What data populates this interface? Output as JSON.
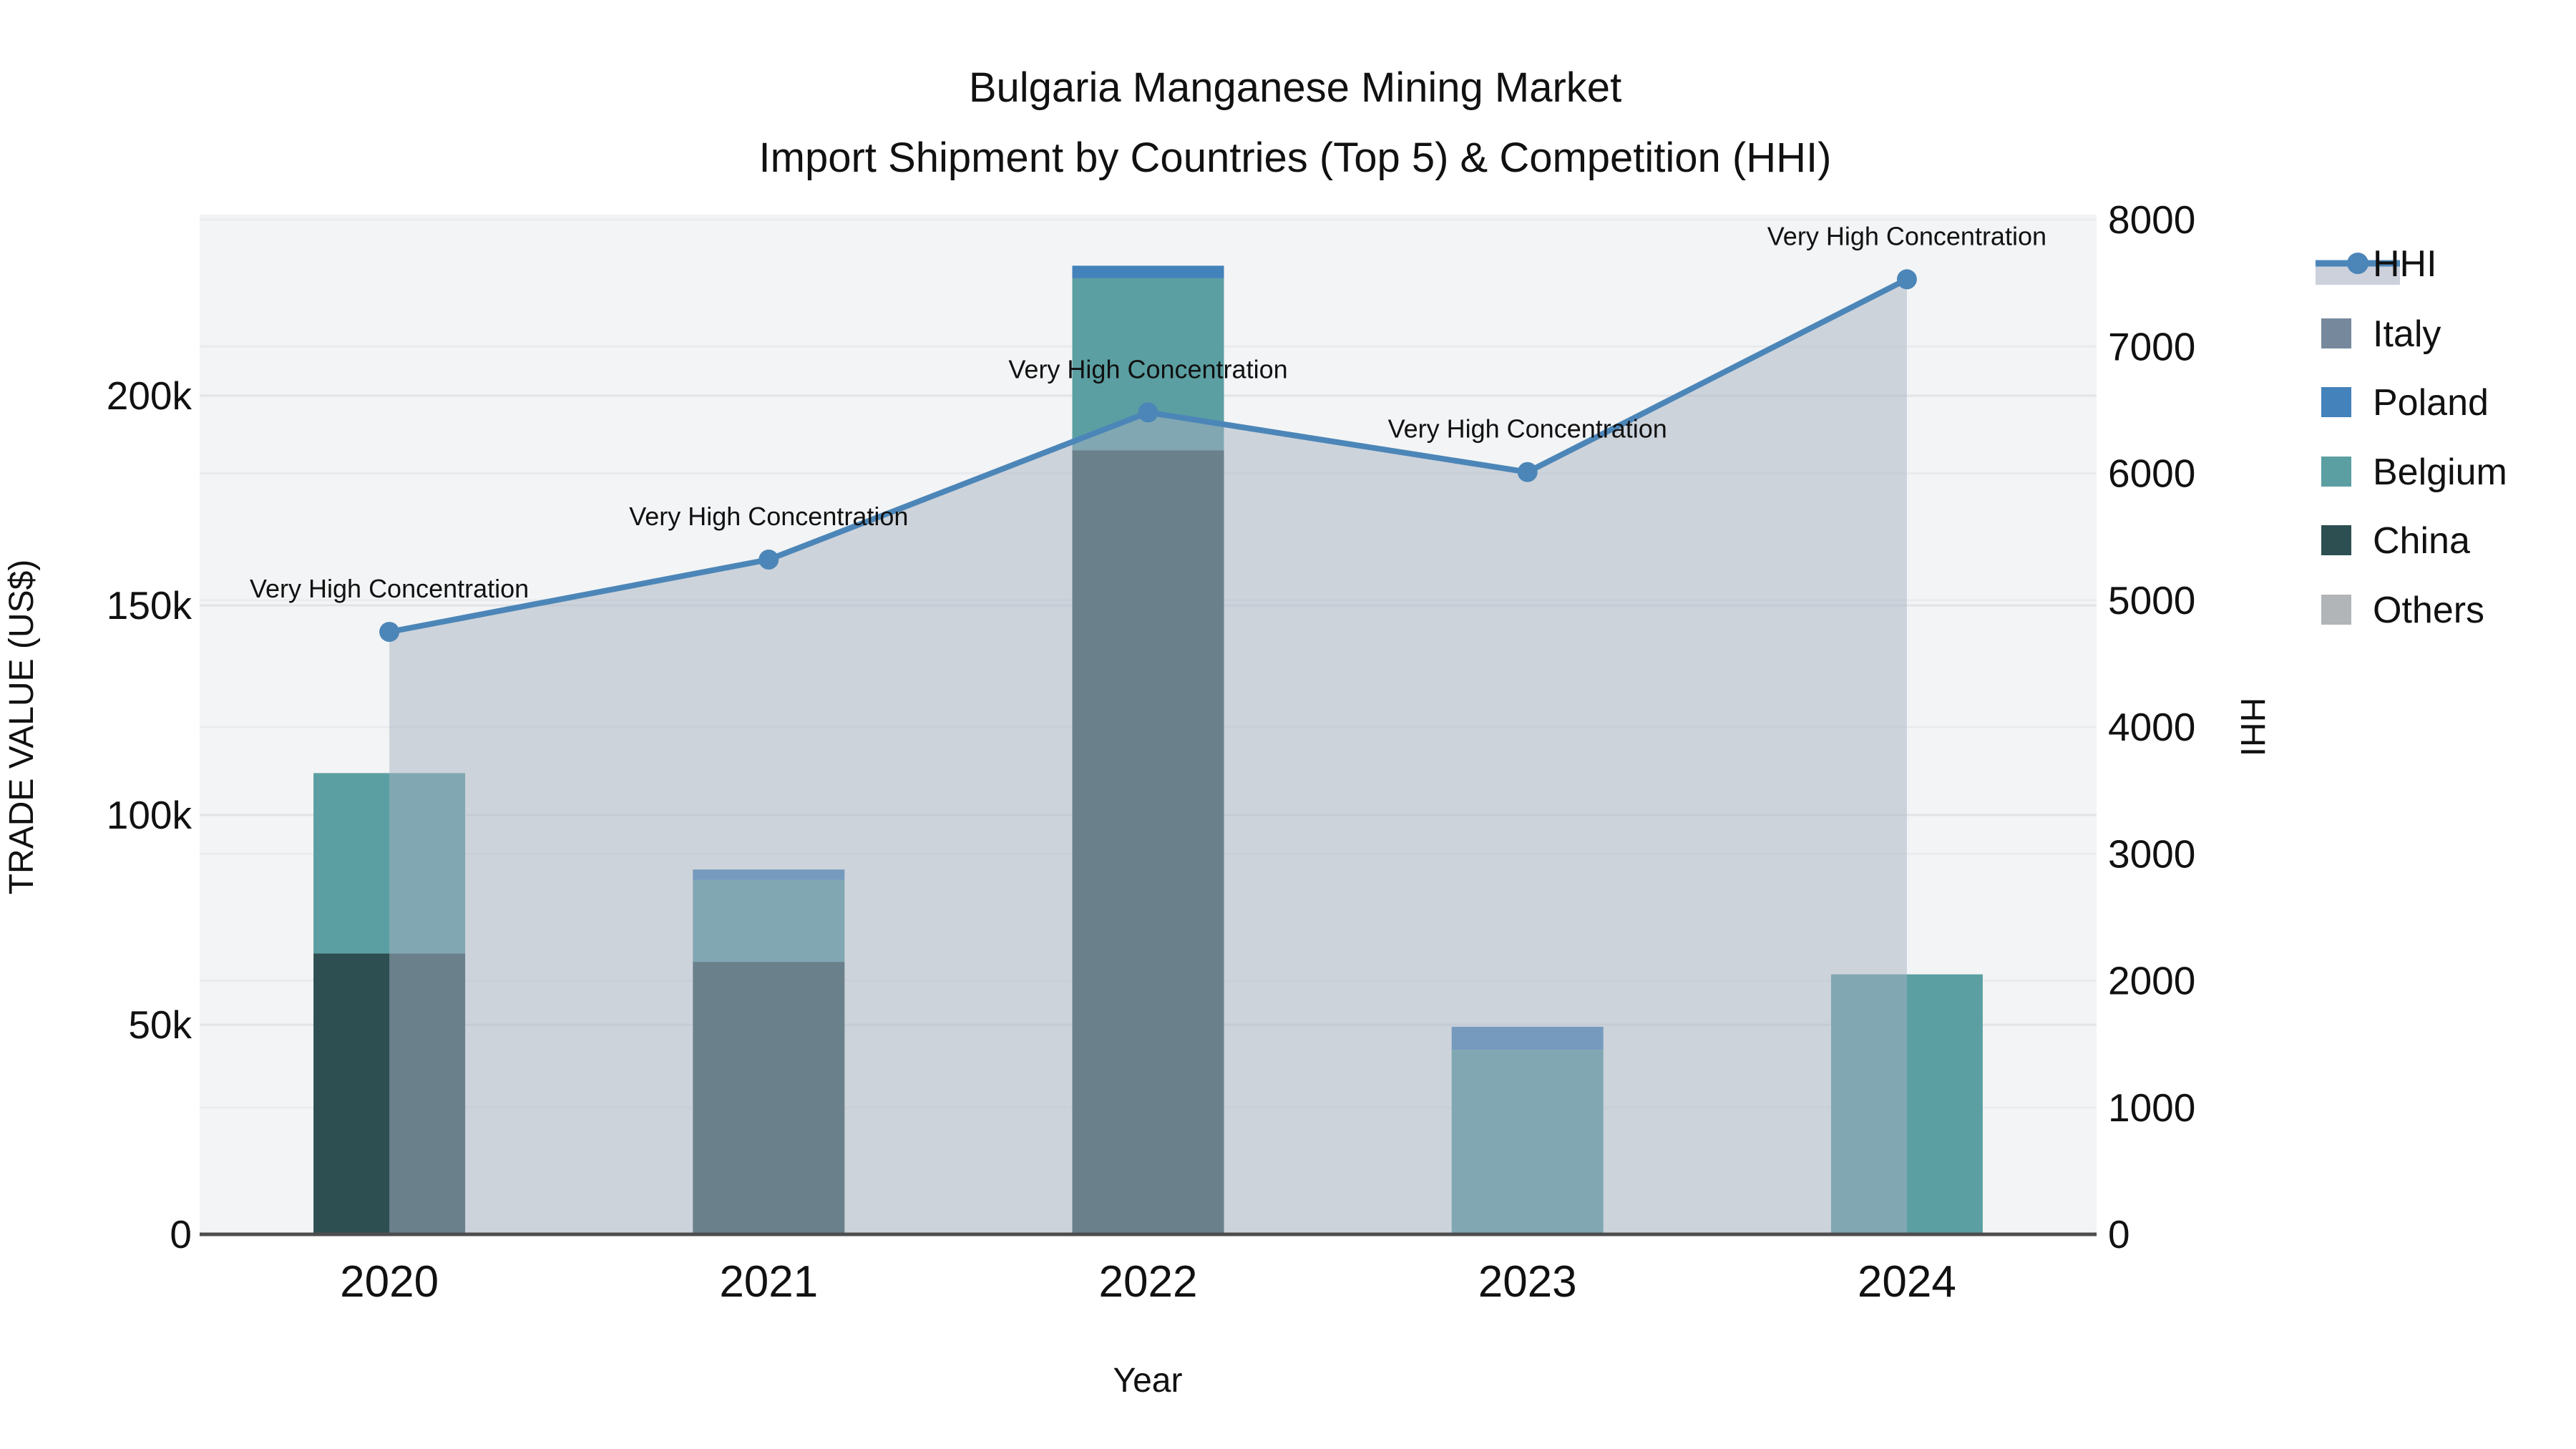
{
  "title": "Bulgaria Manganese Mining Market",
  "subtitle": "Import Shipment by Countries (Top 5) & Competition (HHI)",
  "chart_data": {
    "type": "bar+line",
    "x": {
      "label": "Year",
      "categories": [
        "2020",
        "2021",
        "2022",
        "2023",
        "2024"
      ]
    },
    "y_left": {
      "label": "TRADE VALUE (US$)",
      "ticks": [
        "0",
        "50k",
        "100k",
        "150k",
        "200k"
      ],
      "tick_values": [
        0,
        50000,
        100000,
        150000,
        200000
      ],
      "max": 243000
    },
    "y_right": {
      "label": "HHI",
      "ticks": [
        "0",
        "1000",
        "2000",
        "3000",
        "4000",
        "5000",
        "6000",
        "7000",
        "8000"
      ],
      "tick_values": [
        0,
        1000,
        2000,
        3000,
        4000,
        5000,
        6000,
        7000,
        8000
      ],
      "max": 8000
    },
    "bar_series": [
      {
        "name": "China",
        "color": "#2d4f52",
        "values": [
          67000,
          65000,
          187000,
          0,
          0
        ]
      },
      {
        "name": "Belgium",
        "color": "#5b9fa2",
        "values": [
          43000,
          19500,
          41000,
          44000,
          62000
        ]
      },
      {
        "name": "Poland",
        "color": "#4382ba",
        "values": [
          0,
          2500,
          3000,
          5500,
          0
        ]
      },
      {
        "name": "Italy",
        "color": "#76899c",
        "values": [
          0,
          0,
          0,
          0,
          0
        ]
      },
      {
        "name": "Others",
        "color": "#b1b5b8",
        "values": [
          0,
          0,
          0,
          0,
          0
        ]
      }
    ],
    "bar_totals": [
      110000,
      87000,
      231000,
      49500,
      62000
    ],
    "hhi": {
      "name": "HHI",
      "values": [
        4750,
        5320,
        6480,
        6010,
        7530
      ],
      "color": "#4c86b8",
      "area_color": "rgba(168,178,194,0.5)",
      "annotations": [
        "Very High Concentration",
        "Very High Concentration",
        "Very High Concentration",
        "Very High Concentration",
        "Very High Concentration"
      ]
    },
    "legend": [
      {
        "label": "HHI",
        "type": "line",
        "color": "#4c86b8",
        "band": "#ccd1dc"
      },
      {
        "label": "Italy",
        "type": "square",
        "color": "#76899c"
      },
      {
        "label": "Poland",
        "type": "square",
        "color": "#4382ba"
      },
      {
        "label": "Belgium",
        "type": "square",
        "color": "#5b9fa2"
      },
      {
        "label": "China",
        "type": "square",
        "color": "#2d4f52"
      },
      {
        "label": "Others",
        "type": "square",
        "color": "#b1b5b8"
      }
    ],
    "layout_hints": {
      "plot_bg": "#f3f4f5",
      "grid_left_color": "#e1e4e7",
      "grid_right_color": "#eaebee",
      "axis_line_color": "#4d4d4d",
      "legend_position": "right",
      "annotation_text_color": "#111111"
    }
  }
}
